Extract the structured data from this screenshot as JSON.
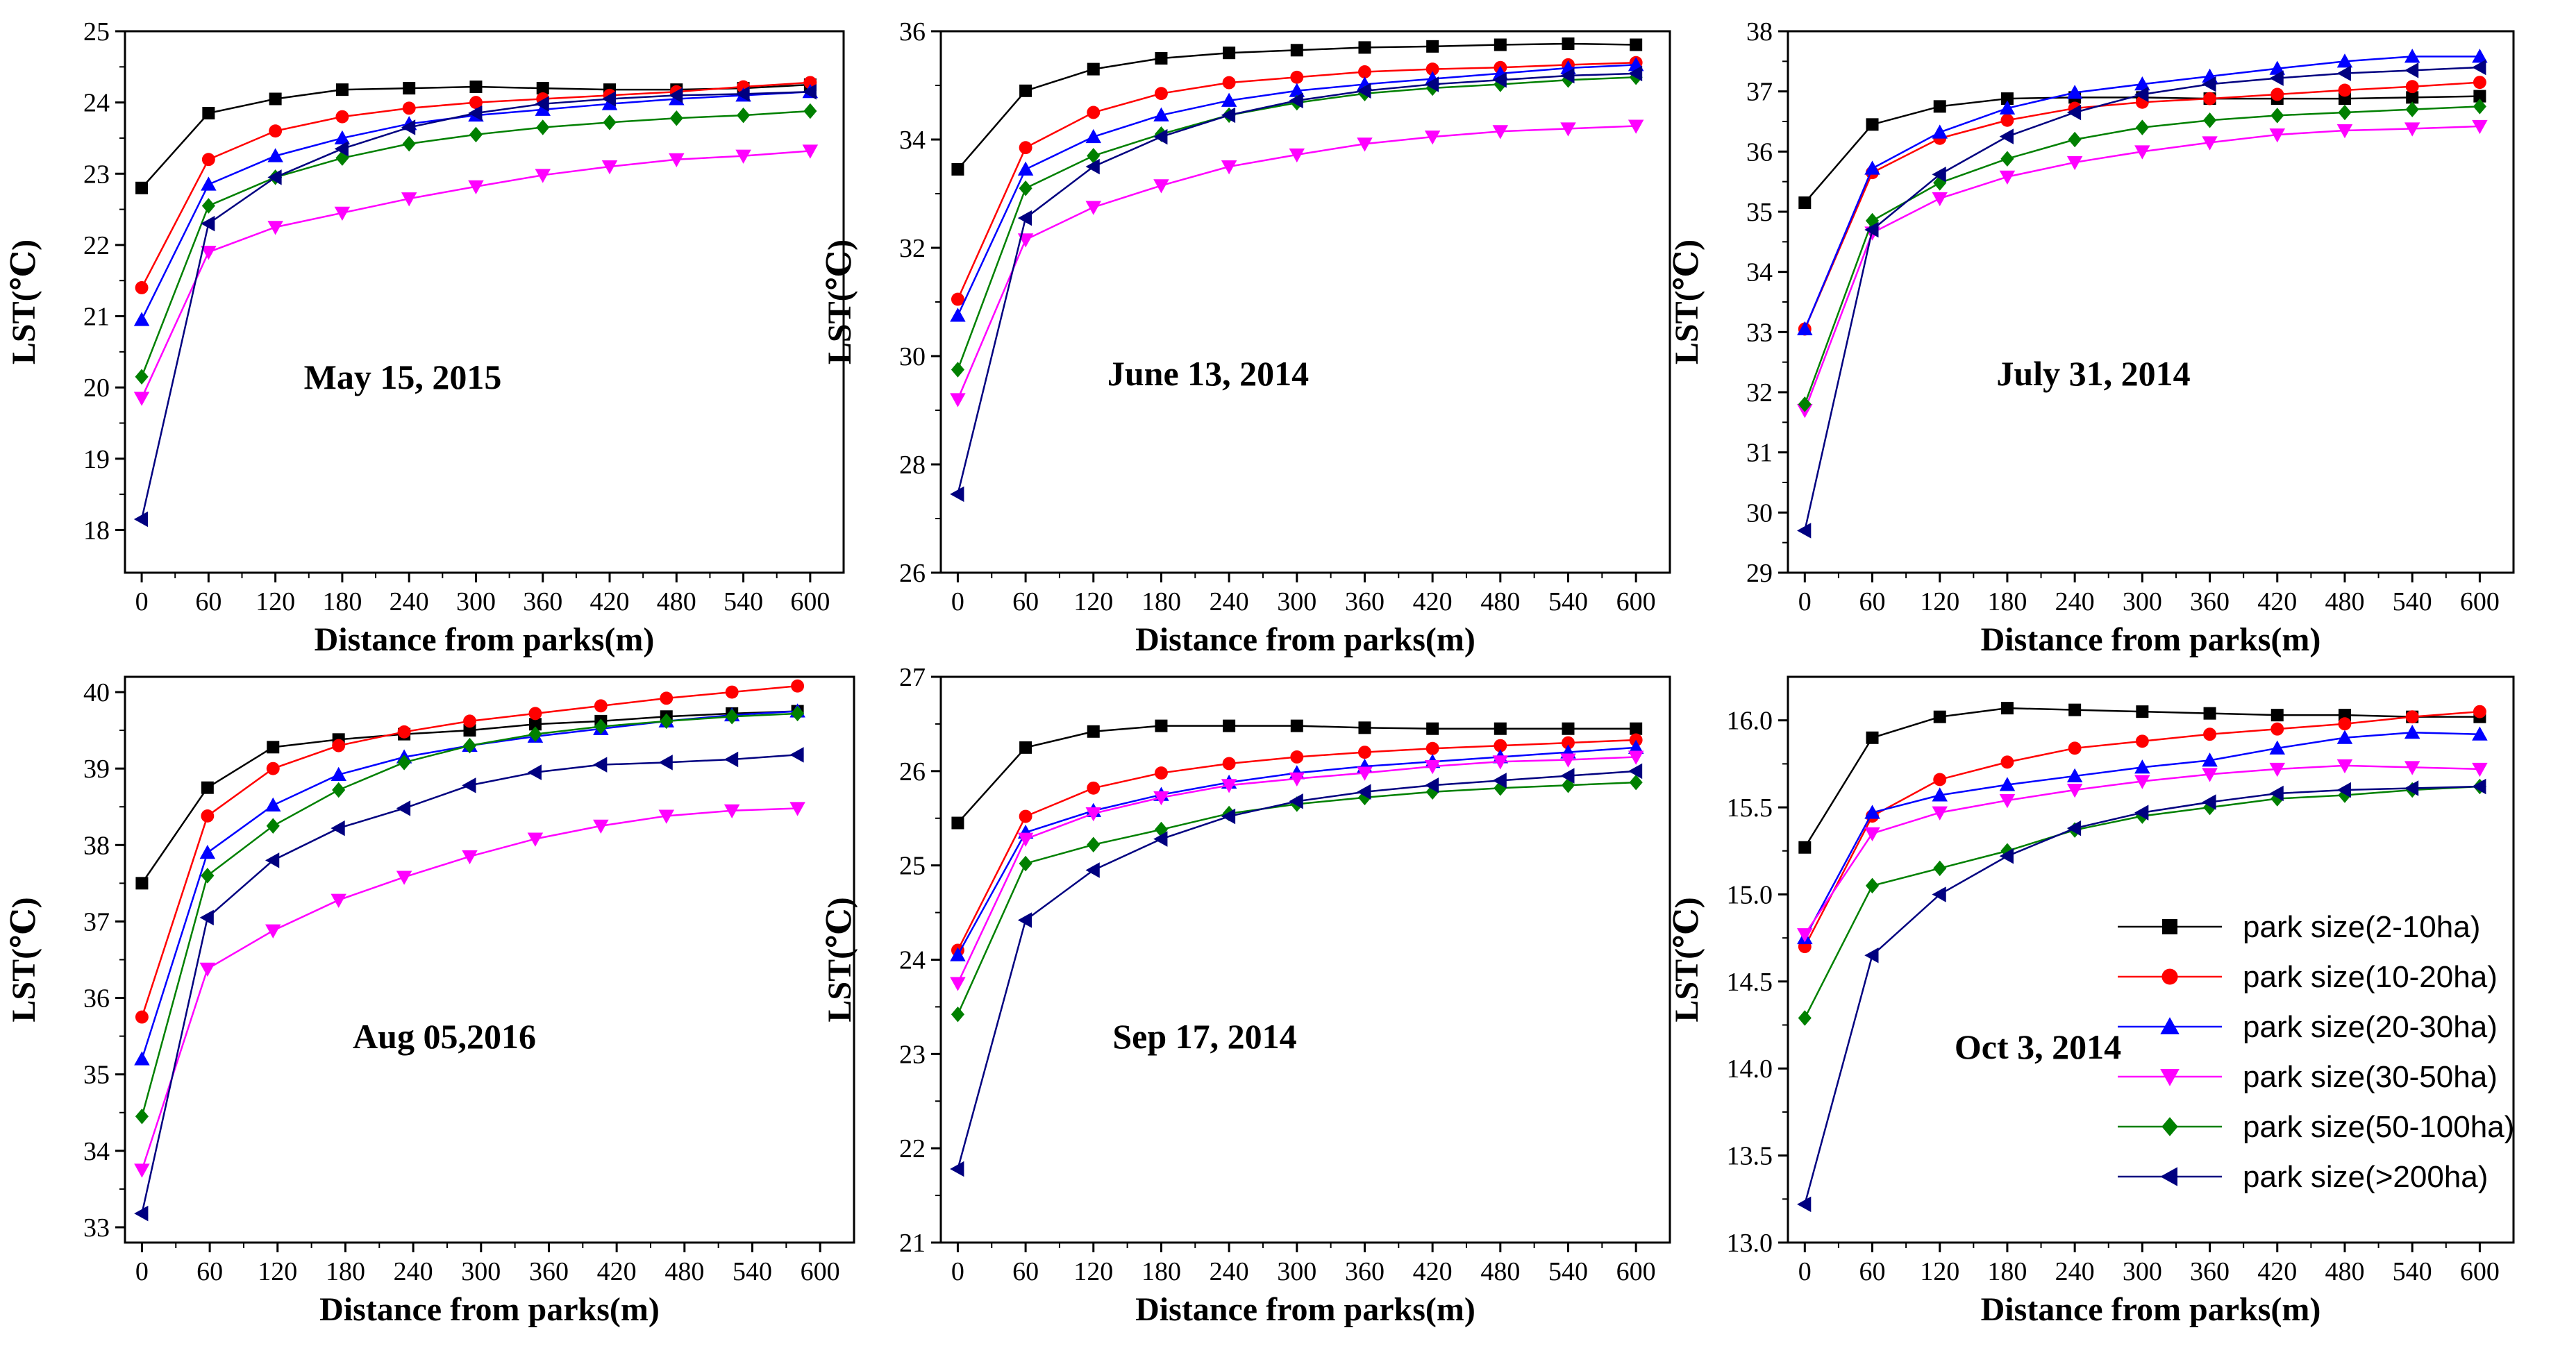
{
  "figure": {
    "series_styles": [
      {
        "color": "#000000",
        "marker": "square"
      },
      {
        "color": "#ff0000",
        "marker": "circle"
      },
      {
        "color": "#0000ff",
        "marker": "triangle-up"
      },
      {
        "color": "#ff00ff",
        "marker": "triangle-down"
      },
      {
        "color": "#008000",
        "marker": "diamond"
      },
      {
        "color": "#000080",
        "marker": "triangle-left"
      }
    ]
  },
  "legend": {
    "placement": "bottom-right",
    "entries": [
      "park size(2-10ha)",
      "park size(10-20ha)",
      "park size(20-30ha)",
      "park size(30-50ha)",
      "park size(50-100ha)",
      "park size(>200ha)"
    ]
  },
  "chart_data": [
    {
      "type": "line",
      "title": "May 15, 2015",
      "xlabel": "Distance from parks(m)",
      "ylabel": "LST(℃)",
      "x": [
        0,
        60,
        120,
        180,
        240,
        300,
        360,
        420,
        480,
        540,
        600
      ],
      "xticks": [
        0,
        60,
        120,
        180,
        240,
        300,
        360,
        420,
        480,
        540,
        600
      ],
      "yticks": [
        18,
        19,
        20,
        21,
        22,
        23,
        24,
        25
      ],
      "xlim": [
        -15,
        630
      ],
      "ylim": [
        17.4,
        25
      ],
      "series": [
        {
          "name": "park size(2-10ha)",
          "values": [
            22.8,
            23.85,
            24.05,
            24.18,
            24.2,
            24.22,
            24.2,
            24.18,
            24.18,
            24.2,
            24.25
          ]
        },
        {
          "name": "park size(10-20ha)",
          "values": [
            21.4,
            23.2,
            23.6,
            23.8,
            23.92,
            24.0,
            24.05,
            24.1,
            24.15,
            24.22,
            24.28
          ]
        },
        {
          "name": "park size(20-30ha)",
          "values": [
            20.95,
            22.85,
            23.25,
            23.5,
            23.7,
            23.82,
            23.9,
            23.98,
            24.05,
            24.1,
            24.15
          ]
        },
        {
          "name": "park size(30-50ha)",
          "values": [
            19.85,
            21.9,
            22.25,
            22.45,
            22.65,
            22.82,
            22.98,
            23.1,
            23.2,
            23.25,
            23.32
          ]
        },
        {
          "name": "park size(50-100ha)",
          "values": [
            20.15,
            22.55,
            22.95,
            23.22,
            23.42,
            23.55,
            23.65,
            23.72,
            23.78,
            23.82,
            23.88
          ]
        },
        {
          "name": "park size(>200ha)",
          "values": [
            18.15,
            22.3,
            22.95,
            23.35,
            23.65,
            23.85,
            23.98,
            24.05,
            24.1,
            24.12,
            24.15
          ]
        }
      ]
    },
    {
      "type": "line",
      "title": "June 13, 2014",
      "xlabel": "Distance from parks(m)",
      "ylabel": "LST(℃)",
      "x": [
        0,
        60,
        120,
        180,
        240,
        300,
        360,
        420,
        480,
        540,
        600
      ],
      "xticks": [
        0,
        60,
        120,
        180,
        240,
        300,
        360,
        420,
        480,
        540,
        600
      ],
      "yticks": [
        26,
        28,
        30,
        32,
        34,
        36
      ],
      "xlim": [
        -15,
        630
      ],
      "ylim": [
        26,
        36
      ],
      "series": [
        {
          "name": "park size(2-10ha)",
          "values": [
            33.45,
            34.9,
            35.3,
            35.5,
            35.6,
            35.65,
            35.7,
            35.72,
            35.75,
            35.77,
            35.75
          ]
        },
        {
          "name": "park size(10-20ha)",
          "values": [
            31.05,
            33.85,
            34.5,
            34.85,
            35.05,
            35.15,
            35.25,
            35.3,
            35.33,
            35.38,
            35.42
          ]
        },
        {
          "name": "park size(20-30ha)",
          "values": [
            30.75,
            33.45,
            34.05,
            34.45,
            34.72,
            34.9,
            35.02,
            35.12,
            35.22,
            35.32,
            35.38
          ]
        },
        {
          "name": "park size(30-50ha)",
          "values": [
            29.2,
            32.15,
            32.75,
            33.15,
            33.5,
            33.72,
            33.92,
            34.05,
            34.15,
            34.2,
            34.25
          ]
        },
        {
          "name": "park size(50-100ha)",
          "values": [
            29.75,
            33.1,
            33.7,
            34.1,
            34.45,
            34.68,
            34.85,
            34.95,
            35.02,
            35.1,
            35.15
          ]
        },
        {
          "name": "park size(>200ha)",
          "values": [
            27.45,
            32.55,
            33.5,
            34.05,
            34.45,
            34.72,
            34.9,
            35.02,
            35.1,
            35.18,
            35.22
          ]
        }
      ]
    },
    {
      "type": "line",
      "title": "July 31, 2014",
      "xlabel": "Distance from parks(m)",
      "ylabel": "LST(℃)",
      "x": [
        0,
        60,
        120,
        180,
        240,
        300,
        360,
        420,
        480,
        540,
        600
      ],
      "xticks": [
        0,
        60,
        120,
        180,
        240,
        300,
        360,
        420,
        480,
        540,
        600
      ],
      "yticks": [
        29,
        30,
        31,
        32,
        33,
        34,
        35,
        36,
        37,
        38
      ],
      "xlim": [
        -15,
        630
      ],
      "ylim": [
        29,
        38
      ],
      "series": [
        {
          "name": "park size(2-10ha)",
          "values": [
            35.15,
            36.45,
            36.75,
            36.88,
            36.9,
            36.9,
            36.88,
            36.88,
            36.88,
            36.9,
            36.92
          ]
        },
        {
          "name": "park size(10-20ha)",
          "values": [
            33.05,
            35.65,
            36.22,
            36.52,
            36.72,
            36.82,
            36.88,
            36.95,
            37.02,
            37.08,
            37.15
          ]
        },
        {
          "name": "park size(20-30ha)",
          "values": [
            33.05,
            35.72,
            36.32,
            36.72,
            36.98,
            37.12,
            37.25,
            37.38,
            37.5,
            37.58,
            37.58
          ]
        },
        {
          "name": "park size(30-50ha)",
          "values": [
            31.7,
            34.65,
            35.22,
            35.58,
            35.82,
            36.0,
            36.15,
            36.28,
            36.35,
            36.38,
            36.42
          ]
        },
        {
          "name": "park size(50-100ha)",
          "values": [
            31.8,
            34.85,
            35.48,
            35.88,
            36.2,
            36.4,
            36.52,
            36.6,
            36.65,
            36.7,
            36.75
          ]
        },
        {
          "name": "park size(>200ha)",
          "values": [
            29.7,
            34.7,
            35.62,
            36.25,
            36.65,
            36.95,
            37.12,
            37.22,
            37.3,
            37.35,
            37.4
          ]
        }
      ]
    },
    {
      "type": "line",
      "title": "Aug 05,2016",
      "xlabel": "Distance from parks(m)",
      "ylabel": "LST(℃)",
      "x": [
        0,
        58,
        116,
        174,
        232,
        290,
        348,
        406,
        464,
        522,
        580
      ],
      "xticks": [
        0,
        60,
        120,
        180,
        240,
        300,
        360,
        420,
        480,
        540,
        600
      ],
      "yticks": [
        33,
        34,
        35,
        36,
        37,
        38,
        39,
        40
      ],
      "xlim": [
        -15,
        630
      ],
      "ylim": [
        32.8,
        40.2
      ],
      "series": [
        {
          "name": "park size(2-10ha)",
          "values": [
            37.5,
            38.75,
            39.28,
            39.38,
            39.45,
            39.5,
            39.58,
            39.62,
            39.68,
            39.72,
            39.75
          ]
        },
        {
          "name": "park size(10-20ha)",
          "values": [
            35.75,
            38.38,
            39.0,
            39.3,
            39.48,
            39.62,
            39.72,
            39.82,
            39.92,
            40.0,
            40.08
          ]
        },
        {
          "name": "park size(20-30ha)",
          "values": [
            35.2,
            37.9,
            38.52,
            38.92,
            39.15,
            39.3,
            39.42,
            39.52,
            39.62,
            39.7,
            39.75
          ]
        },
        {
          "name": "park size(30-50ha)",
          "values": [
            33.75,
            36.38,
            36.88,
            37.28,
            37.58,
            37.85,
            38.08,
            38.25,
            38.38,
            38.45,
            38.48
          ]
        },
        {
          "name": "park size(50-100ha)",
          "values": [
            34.45,
            37.6,
            38.25,
            38.72,
            39.08,
            39.3,
            39.45,
            39.55,
            39.62,
            39.68,
            39.72
          ]
        },
        {
          "name": "park size(>200ha)",
          "values": [
            33.18,
            37.05,
            37.8,
            38.22,
            38.48,
            38.78,
            38.95,
            39.05,
            39.08,
            39.12,
            39.18
          ]
        }
      ]
    },
    {
      "type": "line",
      "title": "Sep 17, 2014",
      "xlabel": "Distance from parks(m)",
      "ylabel": "LST(℃)",
      "x": [
        0,
        60,
        120,
        180,
        240,
        300,
        360,
        420,
        480,
        540,
        600
      ],
      "xticks": [
        0,
        60,
        120,
        180,
        240,
        300,
        360,
        420,
        480,
        540,
        600
      ],
      "yticks": [
        21,
        22,
        23,
        24,
        25,
        26,
        27
      ],
      "xlim": [
        -15,
        630
      ],
      "ylim": [
        21,
        27
      ],
      "series": [
        {
          "name": "park size(2-10ha)",
          "values": [
            25.45,
            26.25,
            26.42,
            26.48,
            26.48,
            26.48,
            26.46,
            26.45,
            26.45,
            26.45,
            26.45
          ]
        },
        {
          "name": "park size(10-20ha)",
          "values": [
            24.1,
            25.52,
            25.82,
            25.98,
            26.08,
            26.15,
            26.2,
            26.24,
            26.27,
            26.3,
            26.33
          ]
        },
        {
          "name": "park size(20-30ha)",
          "values": [
            24.05,
            25.35,
            25.58,
            25.75,
            25.88,
            25.98,
            26.05,
            26.1,
            26.15,
            26.2,
            26.25
          ]
        },
        {
          "name": "park size(30-50ha)",
          "values": [
            23.75,
            25.28,
            25.55,
            25.72,
            25.85,
            25.92,
            25.98,
            26.05,
            26.1,
            26.12,
            26.15
          ]
        },
        {
          "name": "park size(50-100ha)",
          "values": [
            23.42,
            25.02,
            25.22,
            25.38,
            25.55,
            25.65,
            25.72,
            25.78,
            25.82,
            25.85,
            25.88
          ]
        },
        {
          "name": "park size(>200ha)",
          "values": [
            21.78,
            24.42,
            24.95,
            25.28,
            25.52,
            25.68,
            25.78,
            25.85,
            25.9,
            25.95,
            26.0
          ]
        }
      ]
    },
    {
      "type": "line",
      "title": "Oct 3, 2014",
      "xlabel": "Distance from parks(m)",
      "ylabel": "LST(℃)",
      "x": [
        0,
        60,
        120,
        180,
        240,
        300,
        360,
        420,
        480,
        540,
        600
      ],
      "xticks": [
        0,
        60,
        120,
        180,
        240,
        300,
        360,
        420,
        480,
        540,
        600
      ],
      "yticks": [
        13.0,
        13.5,
        14.0,
        14.5,
        15.0,
        15.5,
        16.0
      ],
      "ytick_labels": [
        "13.0",
        "13.5",
        "14.0",
        "14.5",
        "15.0",
        "15.5",
        "16.0"
      ],
      "xlim": [
        -15,
        630
      ],
      "ylim": [
        13.0,
        16.25
      ],
      "series": [
        {
          "name": "park size(2-10ha)",
          "values": [
            15.27,
            15.9,
            16.02,
            16.07,
            16.06,
            16.05,
            16.04,
            16.03,
            16.03,
            16.02,
            16.02
          ]
        },
        {
          "name": "park size(10-20ha)",
          "values": [
            14.7,
            15.45,
            15.66,
            15.76,
            15.84,
            15.88,
            15.92,
            15.95,
            15.98,
            16.02,
            16.05
          ]
        },
        {
          "name": "park size(20-30ha)",
          "values": [
            14.75,
            15.47,
            15.57,
            15.63,
            15.68,
            15.73,
            15.77,
            15.84,
            15.9,
            15.93,
            15.92
          ]
        },
        {
          "name": "park size(30-50ha)",
          "values": [
            14.77,
            15.35,
            15.47,
            15.54,
            15.6,
            15.65,
            15.69,
            15.72,
            15.74,
            15.73,
            15.72
          ]
        },
        {
          "name": "park size(50-100ha)",
          "values": [
            14.29,
            15.05,
            15.15,
            15.25,
            15.37,
            15.45,
            15.5,
            15.55,
            15.57,
            15.6,
            15.62
          ]
        },
        {
          "name": "park size(>200ha)",
          "values": [
            13.22,
            14.65,
            15.0,
            15.22,
            15.38,
            15.47,
            15.53,
            15.58,
            15.6,
            15.61,
            15.62
          ]
        }
      ]
    }
  ]
}
